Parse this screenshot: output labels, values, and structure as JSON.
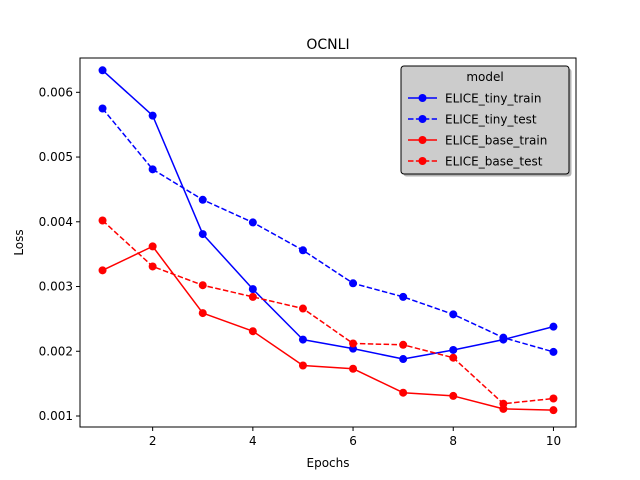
{
  "chart_data": {
    "type": "line",
    "title": "OCNLI",
    "xlabel": "Epochs",
    "ylabel": "Loss",
    "x": [
      1,
      2,
      3,
      4,
      5,
      6,
      7,
      8,
      9,
      10
    ],
    "xlim": [
      0.55,
      10.45
    ],
    "ylim": [
      0.00083,
      0.00653
    ],
    "xticks": [
      2,
      4,
      6,
      8,
      10
    ],
    "yticks": [
      0.001,
      0.002,
      0.003,
      0.004,
      0.005,
      0.006
    ],
    "ytick_labels": [
      "0.001",
      "0.002",
      "0.003",
      "0.004",
      "0.005",
      "0.006"
    ],
    "legend": {
      "title": "model",
      "location": "top-right"
    },
    "series": [
      {
        "name": "ELICE_tiny_train",
        "color": "#0000ff",
        "dash": "solid",
        "values": [
          0.00634,
          0.00564,
          0.00381,
          0.00296,
          0.00218,
          0.00204,
          0.00188,
          0.00202,
          0.00218,
          0.00238
        ]
      },
      {
        "name": "ELICE_tiny_test",
        "color": "#0000ff",
        "dash": "dashed",
        "values": [
          0.00575,
          0.00481,
          0.00434,
          0.00399,
          0.00356,
          0.00305,
          0.00284,
          0.00257,
          0.00221,
          0.00199
        ]
      },
      {
        "name": "ELICE_base_train",
        "color": "#ff0000",
        "dash": "solid",
        "values": [
          0.00325,
          0.00362,
          0.00259,
          0.00231,
          0.00178,
          0.00173,
          0.00136,
          0.00131,
          0.00111,
          0.00109
        ]
      },
      {
        "name": "ELICE_base_test",
        "color": "#ff0000",
        "dash": "dashed",
        "values": [
          0.00402,
          0.00331,
          0.00302,
          0.00284,
          0.00266,
          0.00212,
          0.0021,
          0.0019,
          0.00119,
          0.00127
        ]
      }
    ]
  }
}
